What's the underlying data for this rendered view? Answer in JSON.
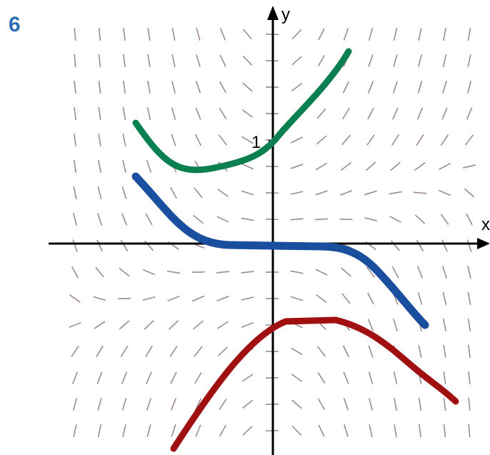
{
  "label": "6",
  "axes": {
    "y_label": "y",
    "x_label": "x",
    "tick_label": "1"
  }
}
